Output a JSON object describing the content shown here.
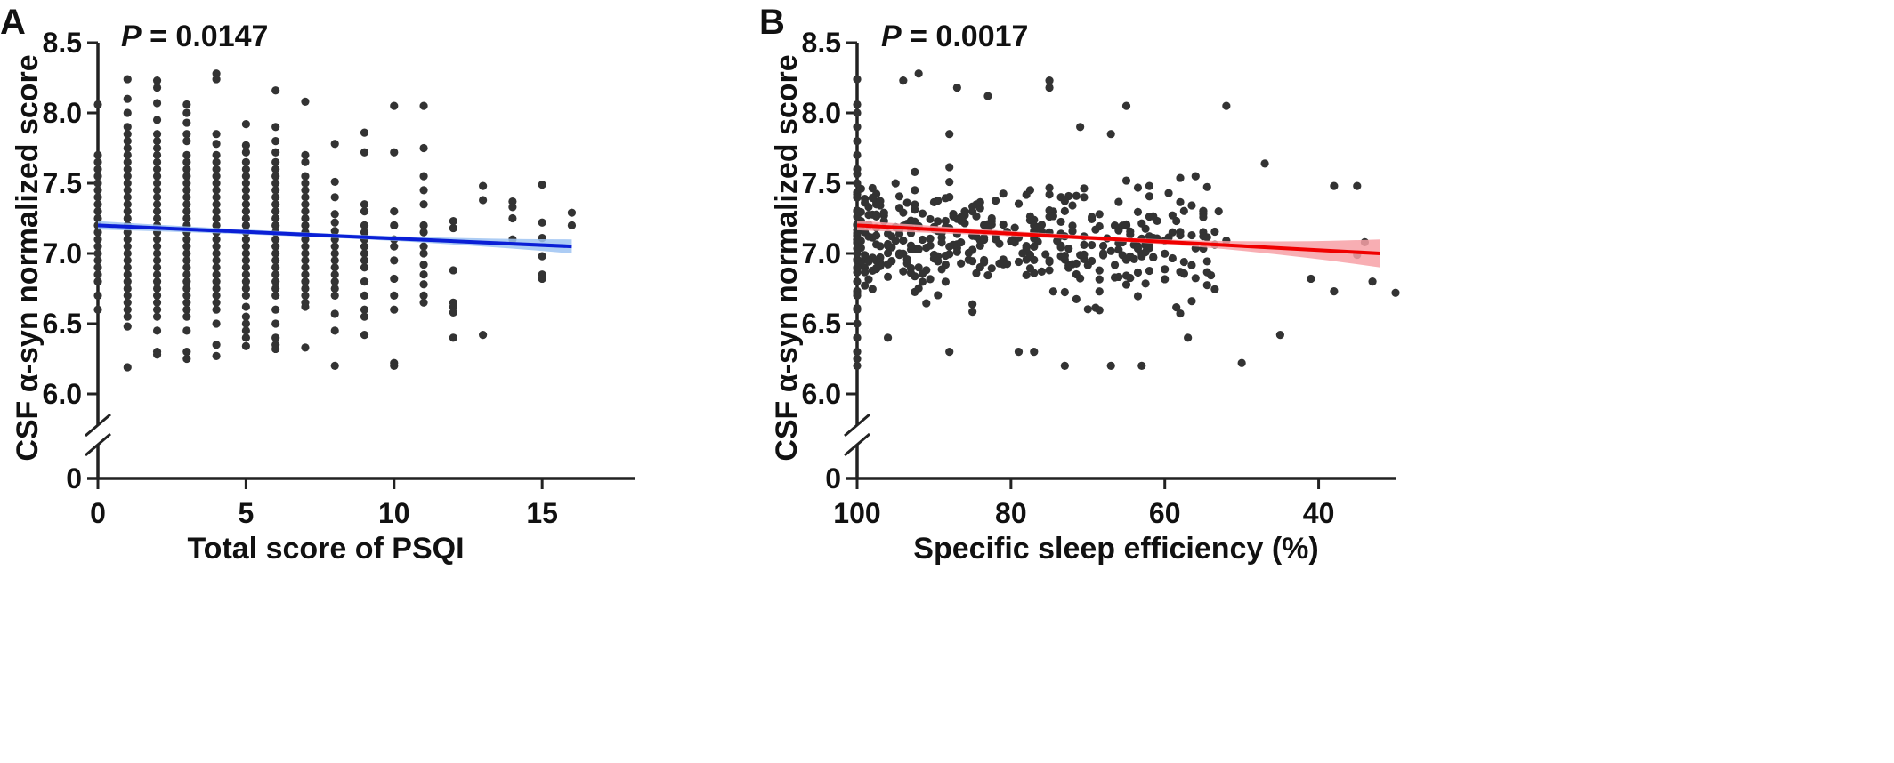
{
  "chart_data": [
    {
      "panel_label": "A",
      "type": "scatter",
      "annotation_italic": "P",
      "annotation_rest": " = 0.0147",
      "xlabel": "Total score of PSQI",
      "ylabel": "CSF α-syn normalized score",
      "x_ticks": [
        "0",
        "5",
        "10",
        "15"
      ],
      "y_ticks": [
        "0",
        "6.0",
        "6.5",
        "7.0",
        "7.5",
        "8.0",
        "8.5"
      ],
      "xlim": [
        0,
        18
      ],
      "ylim": [
        5.85,
        8.5
      ],
      "y_axis_break": true,
      "grid": false,
      "legend": "none",
      "point_color": "#333333",
      "fit_line": {
        "color": "#0a1fd6",
        "band_color": "#9ec3f2",
        "x": [
          0,
          16
        ],
        "y": [
          7.2,
          7.05
        ],
        "band_halfwidth": [
          0.03,
          0.015,
          0.05
        ]
      },
      "points": [
        {
          "x": 0,
          "y": [
            8.06,
            7.7,
            7.65,
            7.6,
            7.55,
            7.5,
            7.45,
            7.4,
            7.35,
            7.3,
            7.25,
            7.2,
            7.15,
            7.1,
            7.05,
            7.0,
            6.95,
            6.9,
            6.85,
            6.8,
            6.7,
            6.6
          ]
        },
        {
          "x": 1,
          "y": [
            8.24,
            8.1,
            8.0,
            7.9,
            7.85,
            7.8,
            7.75,
            7.7,
            7.65,
            7.6,
            7.55,
            7.5,
            7.45,
            7.4,
            7.35,
            7.3,
            7.25,
            7.2,
            7.15,
            7.1,
            7.05,
            7.0,
            6.95,
            6.9,
            6.85,
            6.8,
            6.75,
            6.7,
            6.65,
            6.6,
            6.55,
            6.48,
            6.19
          ]
        },
        {
          "x": 2,
          "y": [
            8.23,
            8.18,
            8.07,
            7.95,
            7.85,
            7.8,
            7.75,
            7.7,
            7.65,
            7.6,
            7.55,
            7.5,
            7.45,
            7.4,
            7.35,
            7.3,
            7.25,
            7.2,
            7.15,
            7.1,
            7.05,
            7.0,
            6.95,
            6.9,
            6.85,
            6.8,
            6.75,
            6.7,
            6.65,
            6.6,
            6.55,
            6.45,
            6.3,
            6.28
          ]
        },
        {
          "x": 3,
          "y": [
            8.06,
            8.0,
            7.93,
            7.85,
            7.8,
            7.7,
            7.65,
            7.6,
            7.55,
            7.5,
            7.45,
            7.4,
            7.35,
            7.3,
            7.25,
            7.2,
            7.15,
            7.1,
            7.05,
            7.0,
            6.95,
            6.9,
            6.85,
            6.8,
            6.75,
            6.7,
            6.65,
            6.6,
            6.55,
            6.45,
            6.3,
            6.25
          ]
        },
        {
          "x": 4,
          "y": [
            8.28,
            8.24,
            7.85,
            7.78,
            7.7,
            7.65,
            7.6,
            7.55,
            7.5,
            7.45,
            7.4,
            7.35,
            7.3,
            7.25,
            7.2,
            7.15,
            7.1,
            7.05,
            7.0,
            6.95,
            6.9,
            6.85,
            6.8,
            6.75,
            6.7,
            6.65,
            6.6,
            6.5,
            6.35,
            6.27
          ]
        },
        {
          "x": 5,
          "y": [
            7.92,
            7.77,
            7.72,
            7.65,
            7.6,
            7.55,
            7.5,
            7.45,
            7.4,
            7.35,
            7.3,
            7.25,
            7.2,
            7.15,
            7.1,
            7.05,
            7.0,
            6.95,
            6.9,
            6.85,
            6.8,
            6.75,
            6.7,
            6.62,
            6.55,
            6.5,
            6.45,
            6.4,
            6.34
          ]
        },
        {
          "x": 6,
          "y": [
            8.16,
            7.9,
            7.8,
            7.72,
            7.65,
            7.6,
            7.55,
            7.5,
            7.45,
            7.4,
            7.35,
            7.3,
            7.25,
            7.2,
            7.15,
            7.1,
            7.05,
            7.0,
            6.95,
            6.9,
            6.85,
            6.8,
            6.75,
            6.7,
            6.6,
            6.5,
            6.4,
            6.35,
            6.32
          ]
        },
        {
          "x": 7,
          "y": [
            8.08,
            7.7,
            7.65,
            7.55,
            7.5,
            7.45,
            7.4,
            7.35,
            7.3,
            7.25,
            7.2,
            7.15,
            7.1,
            7.05,
            7.0,
            6.95,
            6.9,
            6.85,
            6.8,
            6.75,
            6.7,
            6.65,
            6.62,
            6.33
          ]
        },
        {
          "x": 8,
          "y": [
            7.78,
            7.51,
            7.4,
            7.28,
            7.22,
            7.16,
            7.1,
            7.05,
            7.0,
            6.95,
            6.9,
            6.85,
            6.8,
            6.75,
            6.7,
            6.57,
            6.45,
            6.2
          ]
        },
        {
          "x": 9,
          "y": [
            7.86,
            7.72,
            7.35,
            7.3,
            7.2,
            7.15,
            7.1,
            7.05,
            7.0,
            6.95,
            6.9,
            6.8,
            6.7,
            6.6,
            6.55,
            6.42
          ]
        },
        {
          "x": 10,
          "y": [
            8.05,
            7.72,
            7.3,
            7.2,
            7.1,
            7.05,
            6.95,
            6.82,
            6.7,
            6.6,
            6.22,
            6.2
          ]
        },
        {
          "x": 11,
          "y": [
            8.05,
            7.75,
            7.55,
            7.45,
            7.35,
            7.2,
            7.15,
            7.05,
            7.0,
            6.92,
            6.85,
            6.78,
            6.7,
            6.65
          ]
        },
        {
          "x": 12,
          "y": [
            7.23,
            7.18,
            6.88,
            6.65,
            6.62,
            6.58,
            6.4
          ]
        },
        {
          "x": 13,
          "y": [
            7.48,
            7.38,
            6.42
          ]
        },
        {
          "x": 14,
          "y": [
            7.37,
            7.33,
            7.25,
            7.1
          ]
        },
        {
          "x": 15,
          "y": [
            7.49,
            7.22,
            7.11,
            6.98,
            6.85,
            6.82
          ]
        },
        {
          "x": 16,
          "y": [
            7.29,
            7.2
          ]
        }
      ]
    },
    {
      "panel_label": "B",
      "type": "scatter",
      "annotation_italic": "P",
      "annotation_rest": " = 0.0017",
      "xlabel": "Specific sleep efficiency (%)",
      "ylabel": "CSF α-syn normalized score",
      "x_ticks": [
        "100",
        "80",
        "60",
        "40"
      ],
      "y_ticks": [
        "0",
        "6.0",
        "6.5",
        "7.0",
        "7.5",
        "8.0",
        "8.5"
      ],
      "xlim": [
        100,
        30
      ],
      "ylim": [
        5.85,
        8.5
      ],
      "x_reversed": true,
      "y_axis_break": true,
      "grid": false,
      "legend": "none",
      "point_color": "#333333",
      "fit_line": {
        "color": "#f00000",
        "band_color": "#f7a0a6",
        "x": [
          100,
          32
        ],
        "y": [
          7.2,
          7.0
        ],
        "band_halfwidth": [
          0.035,
          0.015,
          0.1
        ]
      },
      "points_seed": 7,
      "points_count": 420,
      "points_extra": [
        [
          100,
          8.24
        ],
        [
          100,
          8.06
        ],
        [
          100,
          8.0
        ],
        [
          100,
          7.9
        ],
        [
          100,
          7.8
        ],
        [
          100,
          7.7
        ],
        [
          100,
          7.6
        ],
        [
          100,
          7.5
        ],
        [
          100,
          7.4
        ],
        [
          100,
          7.3
        ],
        [
          100,
          7.2
        ],
        [
          100,
          7.1
        ],
        [
          100,
          7.0
        ],
        [
          100,
          6.9
        ],
        [
          100,
          6.8
        ],
        [
          100,
          6.7
        ],
        [
          100,
          6.6
        ],
        [
          100,
          6.5
        ],
        [
          100,
          6.4
        ],
        [
          100,
          6.3
        ],
        [
          100,
          6.25
        ],
        [
          100,
          6.2
        ],
        [
          92,
          8.28
        ],
        [
          94,
          8.23
        ],
        [
          75,
          8.23
        ],
        [
          75,
          8.18
        ],
        [
          87,
          8.18
        ],
        [
          83,
          8.12
        ],
        [
          65,
          8.05
        ],
        [
          52,
          8.05
        ],
        [
          71,
          7.9
        ],
        [
          67,
          7.85
        ],
        [
          88,
          7.85
        ],
        [
          56,
          7.55
        ],
        [
          47,
          7.64
        ],
        [
          38,
          7.48
        ],
        [
          35,
          7.48
        ],
        [
          34,
          7.08
        ],
        [
          33,
          6.8
        ],
        [
          30,
          6.72
        ],
        [
          35,
          6.99
        ],
        [
          38,
          6.73
        ],
        [
          41,
          6.82
        ],
        [
          45,
          6.42
        ],
        [
          57,
          6.4
        ],
        [
          50,
          6.22
        ],
        [
          63,
          6.2
        ],
        [
          67,
          6.2
        ],
        [
          73,
          6.2
        ],
        [
          77,
          6.3
        ],
        [
          79,
          6.3
        ],
        [
          88,
          6.3
        ],
        [
          96,
          6.4
        ]
      ]
    }
  ]
}
